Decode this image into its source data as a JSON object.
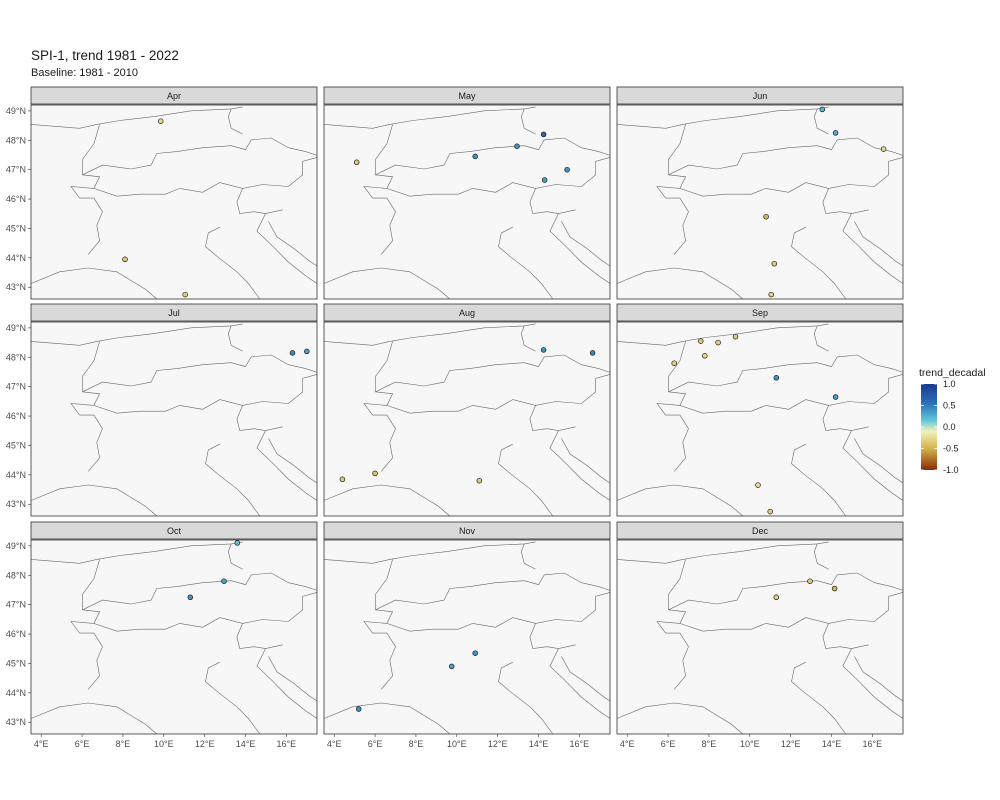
{
  "chart_data": {
    "type": "scatter",
    "title": "SPI-1, trend 1981 - 2022",
    "subtitle": "Baseline: 1981 - 2010",
    "x_ticks": [
      "4°E",
      "6°E",
      "8°E",
      "10°E",
      "12°E",
      "14°E",
      "16°E"
    ],
    "x_tick_values": [
      4,
      6,
      8,
      10,
      12,
      14,
      16
    ],
    "y_ticks": [
      "49°N",
      "48°N",
      "47°N",
      "46°N",
      "45°N",
      "44°N",
      "43°N"
    ],
    "y_tick_values": [
      49,
      48,
      47,
      46,
      45,
      44,
      43
    ],
    "xlim": [
      3.5,
      17.5
    ],
    "ylim": [
      42.6,
      49.2
    ],
    "legend": {
      "title": "trend_decadal",
      "position": "right",
      "labels": [
        "1.0",
        "0.5",
        "0.0",
        "-0.5",
        "-1.0"
      ],
      "values": [
        1.0,
        0.5,
        0.0,
        -0.5,
        -1.0
      ],
      "colors": [
        "#1a3a8f",
        "#2b6fb5",
        "#5ec5d8",
        "#f3f0bf",
        "#d4b24a",
        "#8a2b08"
      ]
    },
    "panels": [
      {
        "label": "Apr",
        "points": [
          {
            "lon": 9.85,
            "lat": 48.65,
            "v": -0.2
          },
          {
            "lon": 8.1,
            "lat": 43.95,
            "v": -0.3
          },
          {
            "lon": 11.05,
            "lat": 42.75,
            "v": -0.25
          }
        ]
      },
      {
        "label": "May",
        "points": [
          {
            "lon": 5.1,
            "lat": 47.25,
            "v": -0.3
          },
          {
            "lon": 10.9,
            "lat": 47.45,
            "v": 0.45
          },
          {
            "lon": 12.95,
            "lat": 47.8,
            "v": 0.45
          },
          {
            "lon": 14.25,
            "lat": 48.2,
            "v": 0.65
          },
          {
            "lon": 15.4,
            "lat": 47.0,
            "v": 0.45
          },
          {
            "lon": 14.3,
            "lat": 46.65,
            "v": 0.4
          }
        ]
      },
      {
        "label": "Jun",
        "points": [
          {
            "lon": 13.55,
            "lat": 49.05,
            "v": 0.3
          },
          {
            "lon": 14.2,
            "lat": 48.25,
            "v": 0.35
          },
          {
            "lon": 16.55,
            "lat": 47.7,
            "v": -0.2
          },
          {
            "lon": 10.8,
            "lat": 45.4,
            "v": -0.45
          },
          {
            "lon": 11.2,
            "lat": 43.8,
            "v": -0.3
          },
          {
            "lon": 11.05,
            "lat": 42.75,
            "v": -0.25
          }
        ]
      },
      {
        "label": "Jul",
        "points": [
          {
            "lon": 16.3,
            "lat": 48.15,
            "v": 0.5
          },
          {
            "lon": 17.0,
            "lat": 48.2,
            "v": 0.4
          }
        ]
      },
      {
        "label": "Aug",
        "points": [
          {
            "lon": 14.25,
            "lat": 48.25,
            "v": 0.45
          },
          {
            "lon": 16.65,
            "lat": 48.15,
            "v": 0.5
          },
          {
            "lon": 4.4,
            "lat": 43.85,
            "v": -0.3
          },
          {
            "lon": 6.0,
            "lat": 44.05,
            "v": -0.35
          },
          {
            "lon": 11.1,
            "lat": 43.8,
            "v": -0.3
          }
        ]
      },
      {
        "label": "Sep",
        "points": [
          {
            "lon": 6.3,
            "lat": 47.8,
            "v": -0.25
          },
          {
            "lon": 7.6,
            "lat": 48.55,
            "v": -0.3
          },
          {
            "lon": 7.8,
            "lat": 48.05,
            "v": -0.2
          },
          {
            "lon": 8.45,
            "lat": 48.5,
            "v": -0.25
          },
          {
            "lon": 9.3,
            "lat": 48.7,
            "v": -0.3
          },
          {
            "lon": 11.3,
            "lat": 47.3,
            "v": 0.45
          },
          {
            "lon": 14.2,
            "lat": 46.65,
            "v": 0.4
          },
          {
            "lon": 10.4,
            "lat": 43.65,
            "v": -0.2
          },
          {
            "lon": 11.0,
            "lat": 42.75,
            "v": -0.3
          }
        ]
      },
      {
        "label": "Oct",
        "points": [
          {
            "lon": 13.6,
            "lat": 49.1,
            "v": 0.25
          },
          {
            "lon": 12.95,
            "lat": 47.8,
            "v": 0.4
          },
          {
            "lon": 11.3,
            "lat": 47.25,
            "v": 0.45
          }
        ]
      },
      {
        "label": "Nov",
        "points": [
          {
            "lon": 10.9,
            "lat": 45.35,
            "v": 0.45
          },
          {
            "lon": 9.75,
            "lat": 44.9,
            "v": 0.4
          },
          {
            "lon": 5.2,
            "lat": 43.45,
            "v": 0.45
          }
        ]
      },
      {
        "label": "Dec",
        "points": [
          {
            "lon": 11.3,
            "lat": 47.25,
            "v": -0.25
          },
          {
            "lon": 12.95,
            "lat": 47.8,
            "v": -0.3
          },
          {
            "lon": 14.15,
            "lat": 47.55,
            "v": -0.45
          }
        ]
      }
    ]
  }
}
